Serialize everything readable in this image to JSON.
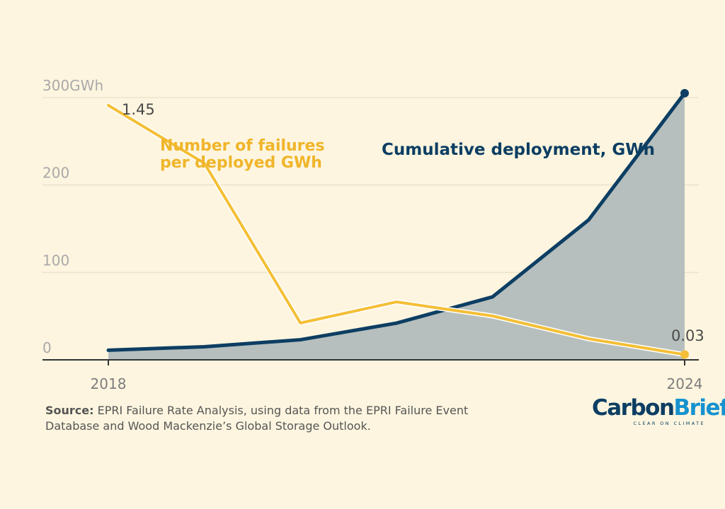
{
  "chart_data": {
    "type": "line",
    "title": "",
    "x": [
      2018,
      2019,
      2020,
      2021,
      2022,
      2023,
      2024
    ],
    "x_tick_labels": [
      "2018",
      "2024"
    ],
    "y_tick_labels": [
      "0",
      "100",
      "200",
      "300GWh"
    ],
    "ylim": [
      0,
      300
    ],
    "series": [
      {
        "name": "Cumulative deployment, GWh",
        "label": "Cumulative deployment, GWh",
        "color": "#0d3e63",
        "fill": "#b6bfbd",
        "values": [
          11,
          15,
          23,
          42,
          72,
          160,
          305
        ],
        "end_marker": true
      },
      {
        "name": "Number of failures per deployed GWh",
        "label_line1": "Number of failures",
        "label_line2": "per deployed GWh",
        "color": "#f4bf36",
        "values": [
          1.45,
          1.12,
          0.21,
          0.33,
          0.25,
          0.12,
          0.03
        ],
        "start_label": "1.45",
        "end_label": "0.03",
        "end_marker": true
      }
    ],
    "grid": true
  },
  "source": {
    "bold": "Source:",
    "text": " EPRI Failure Rate Analysis, using data from the EPRI Failure Event Database and Wood Mackenzie’s Global Storage Outlook."
  },
  "logo": {
    "word_a": "Carbon",
    "word_b": "Brief",
    "tagline": "CLEAR ON CLIMATE",
    "color_a": "#0d3e63",
    "color_b": "#1592cf"
  }
}
